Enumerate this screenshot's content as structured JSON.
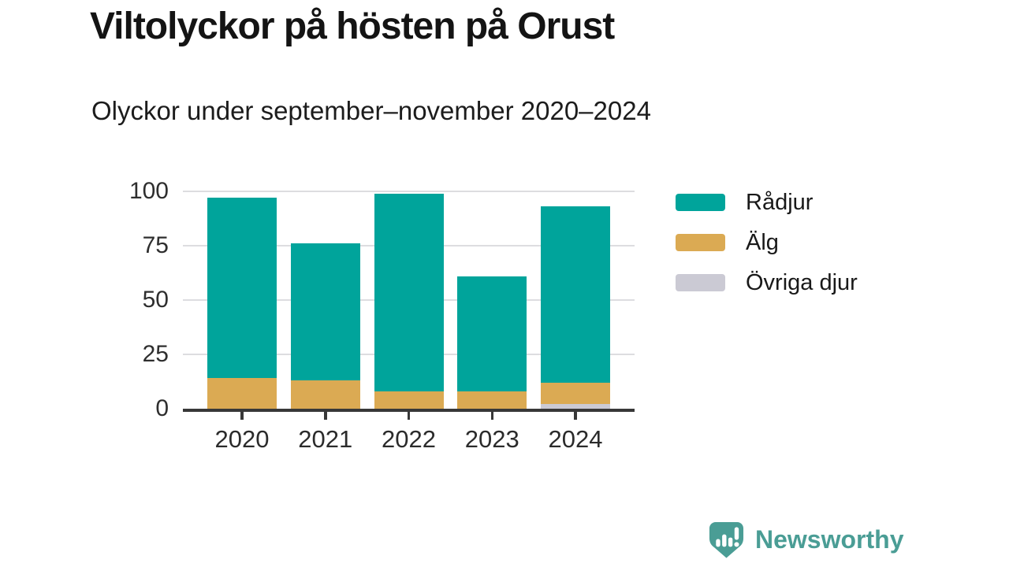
{
  "header": {
    "title": "Viltolyckor på hösten på Orust",
    "subtitle": "Olyckor under september–november 2020–2024"
  },
  "chart_data": {
    "type": "bar",
    "stacked": true,
    "title": "Viltolyckor på hösten på Orust",
    "subtitle": "Olyckor under september–november 2020–2024",
    "categories": [
      "2020",
      "2021",
      "2022",
      "2023",
      "2024"
    ],
    "series": [
      {
        "name": "Rådjur",
        "color": "#00a49b",
        "values": [
          83,
          63,
          91,
          53,
          81
        ]
      },
      {
        "name": "Älg",
        "color": "#dbaa53",
        "values": [
          14,
          13,
          8,
          8,
          10
        ]
      },
      {
        "name": "Övriga djur",
        "color": "#cbcad4",
        "values": [
          0,
          0,
          0,
          0,
          2
        ]
      }
    ],
    "stack_order_bottom_to_top": [
      "Övriga djur",
      "Älg",
      "Rådjur"
    ],
    "stack_totals": [
      97,
      76,
      99,
      61,
      93
    ],
    "xlabel": "",
    "ylabel": "",
    "ylim": [
      0,
      100
    ],
    "yticks": [
      0,
      25,
      50,
      75,
      100
    ],
    "grid": true,
    "legend_position": "right"
  },
  "branding": {
    "name": "Newsworthy",
    "color": "#4a9d95"
  },
  "colors": {
    "axis_line": "#383838",
    "grid_line": "#dddde0",
    "background": "#ffffff"
  }
}
